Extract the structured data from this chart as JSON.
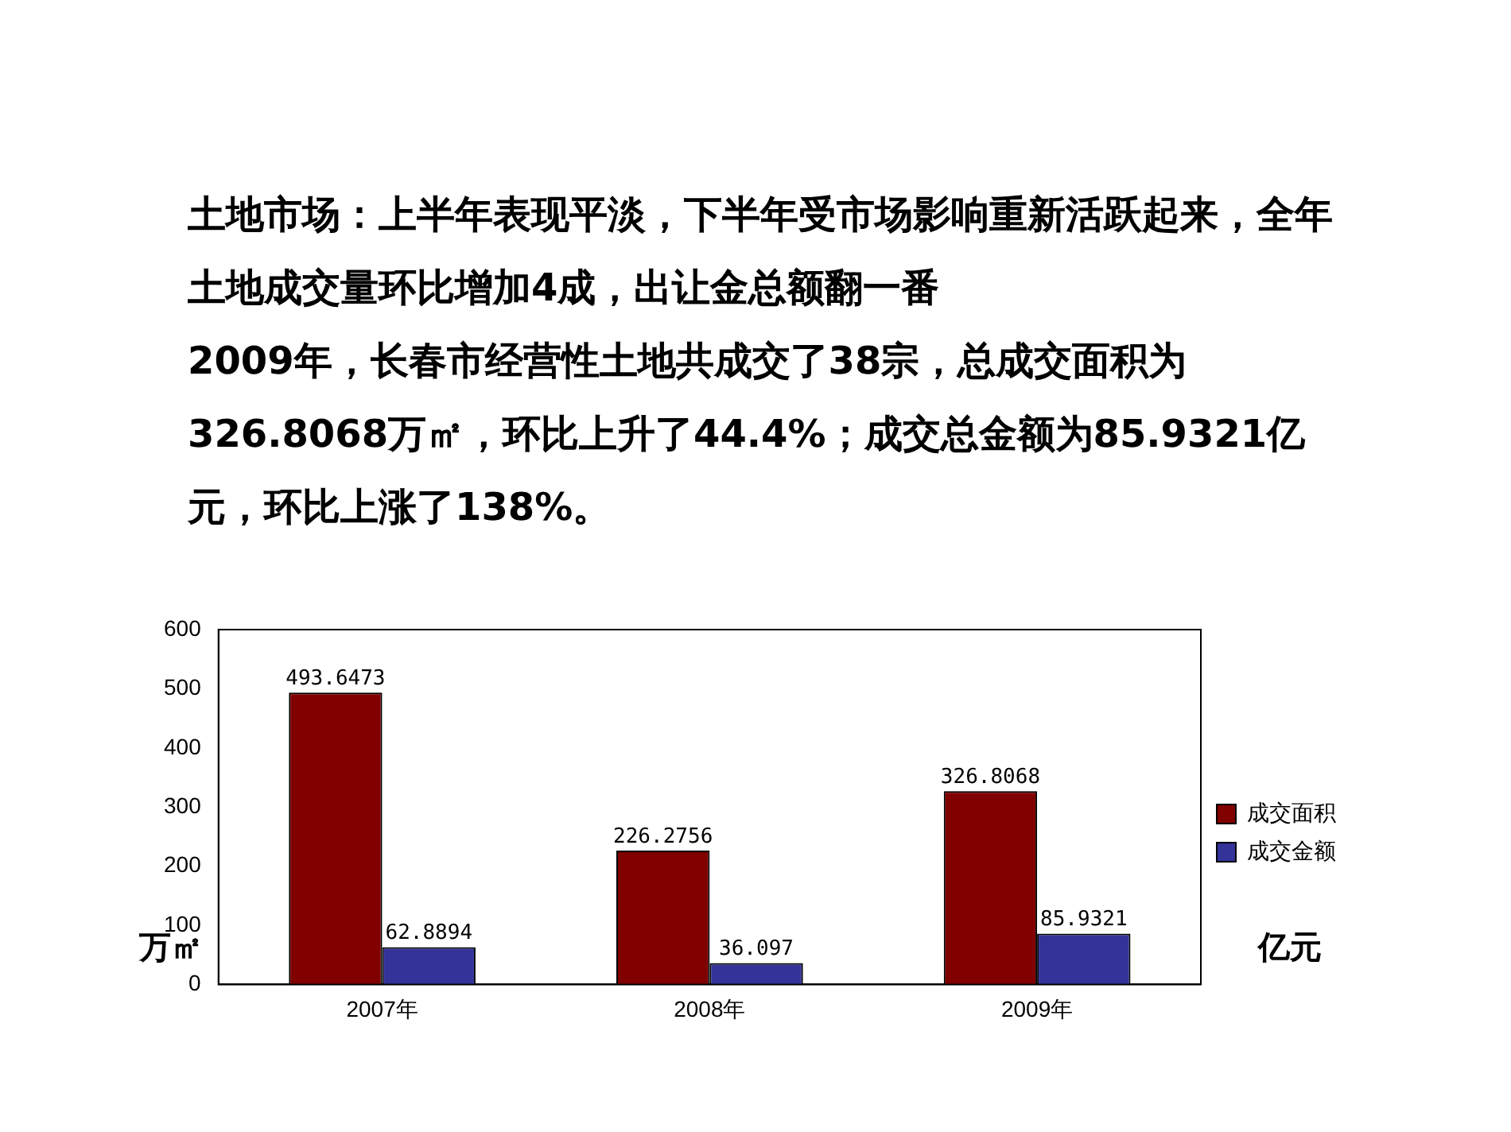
{
  "chart_data": {
    "type": "bar",
    "title": "土地市场：上半年表现平淡，下半年受市场影响重新活跃起来，全年土地成交量环比增加4成，出让金总额翻一番",
    "subtitle": "2009年，长春市经营性土地共成交了38宗，总成交面积为326.8068万㎡，环比上升了44.4%；成交总金额为85.9321亿元，环比上涨了138%。",
    "categories": [
      "2007年",
      "2008年",
      "2009年"
    ],
    "series": [
      {
        "name": "成交面积",
        "color": "#800000",
        "values": [
          493.6473,
          226.2756,
          326.8068
        ]
      },
      {
        "name": "成交金额",
        "color": "#333399",
        "values": [
          62.8894,
          36.097,
          85.9321
        ]
      }
    ],
    "ylabel": "万㎡",
    "y2label": "亿元",
    "ylim": [
      0,
      600
    ],
    "yticks": [
      0,
      100,
      200,
      300,
      400,
      500,
      600
    ],
    "grid": false,
    "legend": "right",
    "data_labels": true
  }
}
